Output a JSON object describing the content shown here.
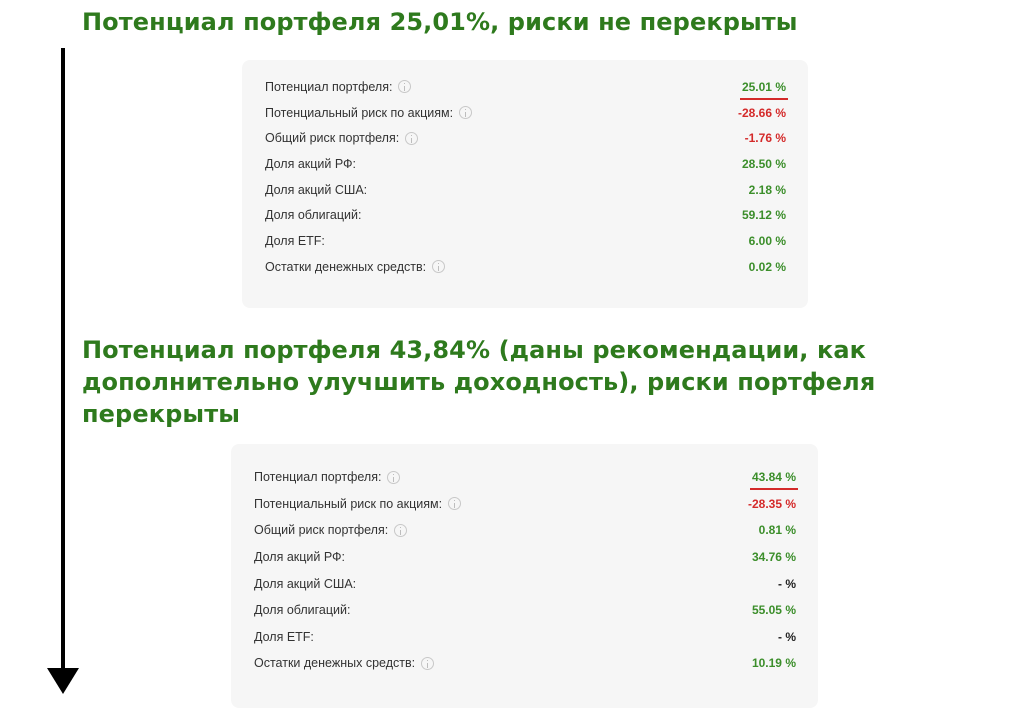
{
  "headings": {
    "first": "Потенциал портфеля 25,01%, риски не перекрыты",
    "second": "Потенциал портфеля 43,84% (даны рекомендации, как дополнительно улучшить доходность), риски портфеля перекрыты"
  },
  "colors": {
    "heading": "#2e7a1d",
    "positive": "#3b8e2a",
    "negative": "#d42a2a",
    "card_background": "#f6f6f6"
  },
  "icons": [
    "info-icon",
    "arrow-down-icon"
  ],
  "cards": [
    {
      "rows": [
        {
          "label": "Потенциал портфеля:",
          "info": true,
          "value": "25.01 %",
          "tone": "green",
          "underline": true
        },
        {
          "label": "Потенциальный риск по акциям:",
          "info": true,
          "value": "-28.66 %",
          "tone": "red",
          "underline": false
        },
        {
          "label": "Общий риск портфеля:",
          "info": true,
          "value": "-1.76 %",
          "tone": "red",
          "underline": false
        },
        {
          "label": "Доля акций РФ:",
          "info": false,
          "value": "28.50 %",
          "tone": "green",
          "underline": false
        },
        {
          "label": "Доля акций США:",
          "info": false,
          "value": "2.18 %",
          "tone": "green",
          "underline": false
        },
        {
          "label": "Доля облигаций:",
          "info": false,
          "value": "59.12 %",
          "tone": "green",
          "underline": false
        },
        {
          "label": "Доля ETF:",
          "info": false,
          "value": "6.00 %",
          "tone": "green",
          "underline": false
        },
        {
          "label": "Остатки денежных средств:",
          "info": true,
          "value": "0.02 %",
          "tone": "green",
          "underline": false
        }
      ]
    },
    {
      "rows": [
        {
          "label": "Потенциал портфеля:",
          "info": true,
          "value": "43.84 %",
          "tone": "green",
          "underline": true
        },
        {
          "label": "Потенциальный риск по акциям:",
          "info": true,
          "value": "-28.35 %",
          "tone": "red",
          "underline": false
        },
        {
          "label": "Общий риск портфеля:",
          "info": true,
          "value": "0.81 %",
          "tone": "green",
          "underline": false
        },
        {
          "label": "Доля акций РФ:",
          "info": false,
          "value": "34.76 %",
          "tone": "green",
          "underline": false
        },
        {
          "label": "Доля акций США:",
          "info": false,
          "value": "- %",
          "tone": "black",
          "underline": false
        },
        {
          "label": "Доля облигаций:",
          "info": false,
          "value": "55.05 %",
          "tone": "green",
          "underline": false
        },
        {
          "label": "Доля ETF:",
          "info": false,
          "value": "- %",
          "tone": "black",
          "underline": false
        },
        {
          "label": "Остатки денежных средств:",
          "info": true,
          "value": "10.19 %",
          "tone": "green",
          "underline": false
        }
      ]
    }
  ]
}
